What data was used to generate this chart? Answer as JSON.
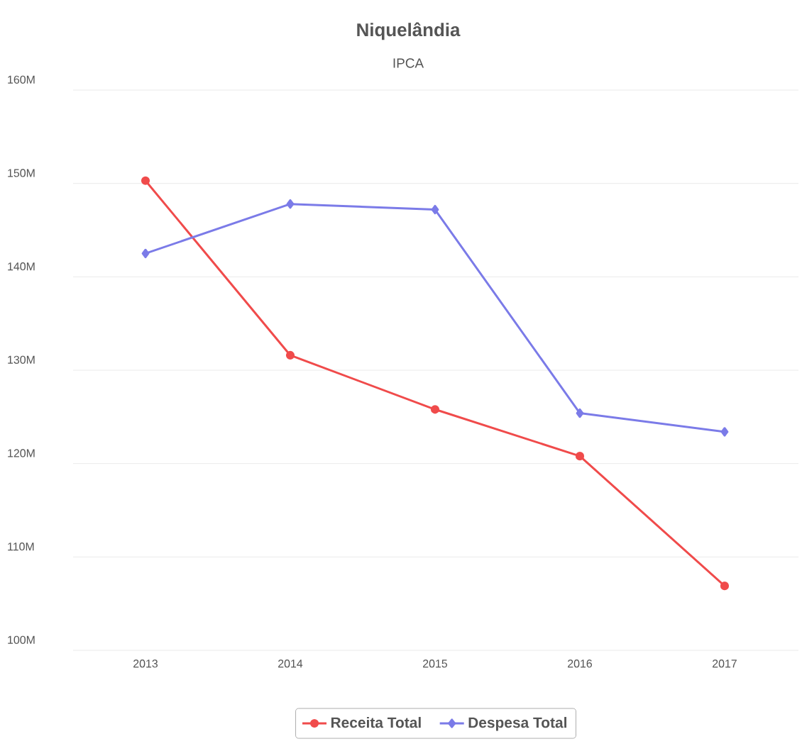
{
  "chart_data": {
    "type": "line",
    "title": "Niquelândia",
    "subtitle": "IPCA",
    "categories": [
      "2013",
      "2014",
      "2015",
      "2016",
      "2017"
    ],
    "series": [
      {
        "name": "Receita Total",
        "color": "#f04b4b",
        "marker": "circle",
        "values": [
          150.3,
          131.6,
          125.8,
          120.8,
          106.9
        ]
      },
      {
        "name": "Despesa Total",
        "color": "#7b7be8",
        "marker": "diamond",
        "values": [
          142.5,
          147.8,
          147.2,
          125.4,
          123.4
        ]
      }
    ],
    "ylim": [
      100,
      160
    ],
    "yticks": [
      {
        "value": 100,
        "label": "100M"
      },
      {
        "value": 110,
        "label": "110M"
      },
      {
        "value": 120,
        "label": "120M"
      },
      {
        "value": 130,
        "label": "130M"
      },
      {
        "value": 140,
        "label": "140M"
      },
      {
        "value": 150,
        "label": "150M"
      },
      {
        "value": 160,
        "label": "160M"
      }
    ],
    "grid": "y",
    "legend": "bottom",
    "line_style": "solid"
  }
}
